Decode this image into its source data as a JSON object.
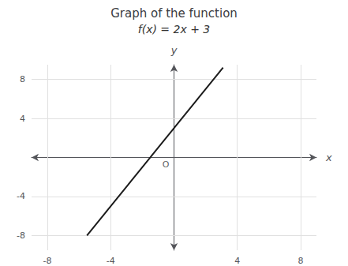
{
  "chart_data": {
    "type": "line",
    "title": "Graph of the function",
    "subtitle": "f(x) = 2x + 3",
    "x": [
      -5.5,
      3.1
    ],
    "values": [
      -8,
      9.2
    ],
    "color": "#1a1a1a",
    "xlim": [
      -9,
      9
    ],
    "ylim": [
      -9.5,
      9.5
    ],
    "xticks": [
      -8,
      -4,
      4,
      8
    ],
    "yticks": [
      -8,
      -4,
      4,
      8
    ],
    "xlabel": "x",
    "ylabel": "y",
    "annotations": [
      {
        "text": "O",
        "x": 0,
        "y": 0
      }
    ],
    "grid": true
  }
}
